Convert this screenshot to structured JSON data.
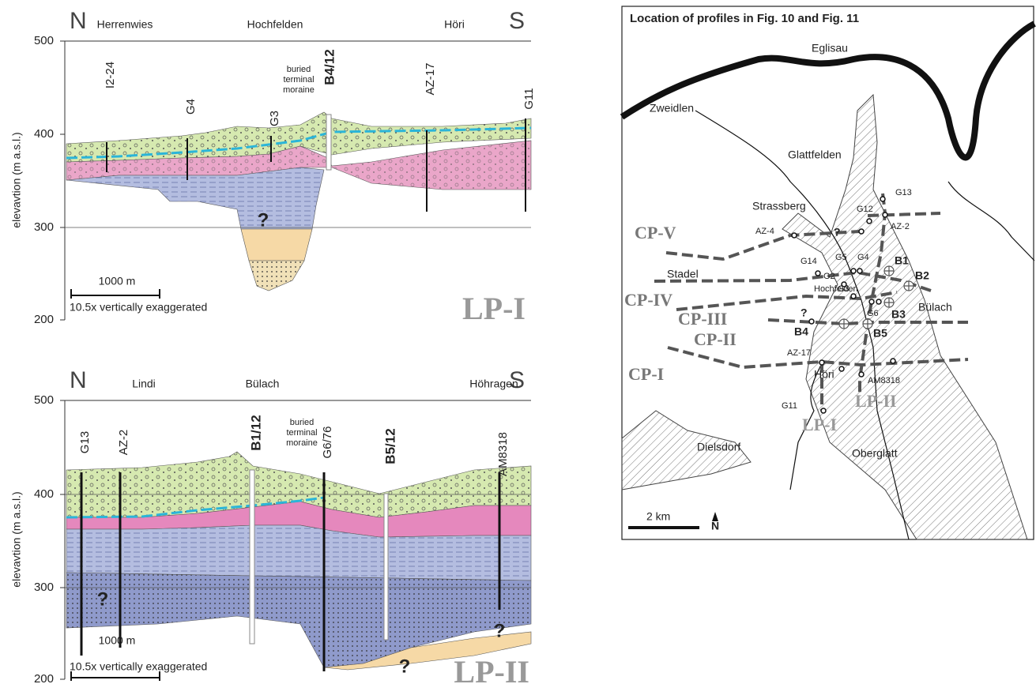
{
  "profiles": [
    {
      "north": "N",
      "south": "S",
      "places": [
        "Herrenwies",
        "Hochfelden",
        "Höri"
      ],
      "yticks": [
        500,
        400,
        300,
        200
      ],
      "ylabel": "elevavtion (m a.s.l.)",
      "boreholes": [
        "I2-24",
        "G4",
        "G3",
        "B4/12",
        "AZ-17",
        "G11"
      ],
      "annotation": [
        "buried",
        "terminal",
        "moraine"
      ],
      "unknowns": [
        "?"
      ],
      "scale": "1000 m",
      "exaggeration": "10.5x vertically exaggerated",
      "name": "LP-I"
    },
    {
      "north": "N",
      "south": "S",
      "places": [
        "Lindi",
        "Bülach",
        "Höhragen"
      ],
      "yticks": [
        500,
        400,
        300,
        200
      ],
      "ylabel": "elevavtion (m a.s.l.)",
      "boreholes": [
        "G13",
        "AZ-2",
        "B1/12",
        "G6/76",
        "B5/12",
        "AM8318"
      ],
      "annotation": [
        "buried",
        "terminal",
        "moraine"
      ],
      "unknowns": [
        "?",
        "?",
        "?"
      ],
      "scale": "1000 m",
      "exaggeration": "10.5x vertically exaggerated",
      "name": "LP-II"
    }
  ],
  "map": {
    "title": "Location of profiles in Fig. 10 and Fig. 11",
    "places": [
      "Eglisau",
      "Zweidlen",
      "Glattfelden",
      "Strassberg",
      "Stadel",
      "Hochfelden",
      "Bülach",
      "Höri",
      "Dielsdorf",
      "Oberglatt"
    ],
    "boreholes": [
      "G13",
      "G12",
      "AZ-2",
      "AZ-4",
      "G14",
      "G5",
      "G4",
      "G2",
      "G3",
      "G6",
      "AZ-17",
      "AM8318",
      "G11"
    ],
    "new_boreholes": [
      "B1",
      "B2",
      "B3",
      "B4",
      "B5"
    ],
    "unknowns": [
      "?",
      "?"
    ],
    "cross_profiles": [
      "CP-V",
      "CP-IV",
      "CP-III",
      "CP-II",
      "CP-I"
    ],
    "long_profiles": [
      "LP-I",
      "LP-II"
    ],
    "scale": "2 km",
    "north": "N"
  }
}
